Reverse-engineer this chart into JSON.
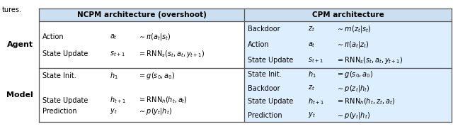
{
  "figsize": [
    6.4,
    1.82
  ],
  "dpi": 100,
  "bg_color": "#ffffff",
  "header_bg": "#ccdff0",
  "cpm_row_bg": "#ddeeff",
  "header_text_left": "NCPM architecture (overshoot)",
  "header_text_right": "CPM architecture",
  "tures_text": "tures."
}
